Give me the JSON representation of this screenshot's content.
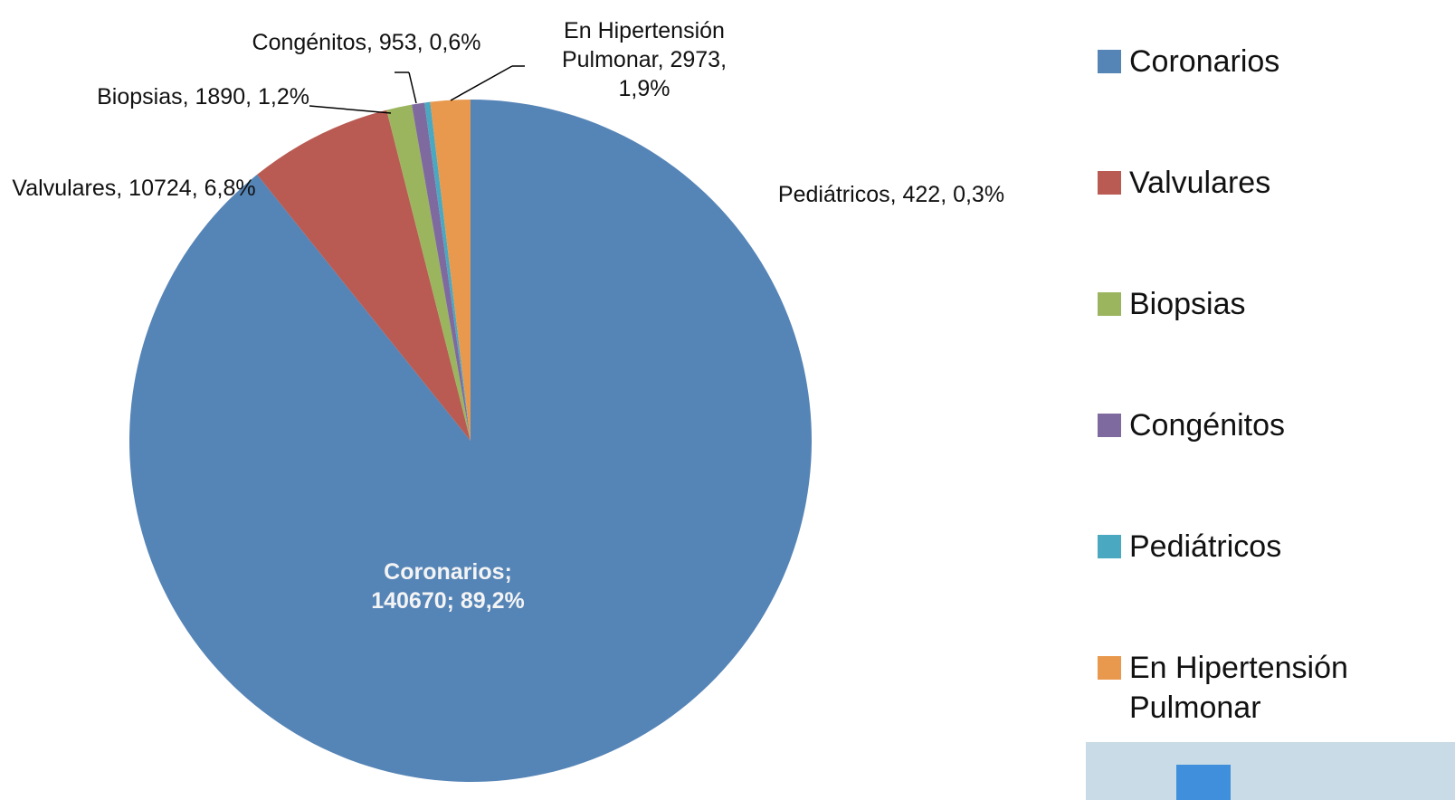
{
  "chart_data": {
    "type": "pie",
    "categories": [
      "Coronarios",
      "Valvulares",
      "Biopsias",
      "Congénitos",
      "Pediátricos",
      "En Hipertensión Pulmonar"
    ],
    "values": [
      140670,
      10724,
      1890,
      953,
      422,
      2973
    ],
    "value_labels": [
      "Coronarios; 140670; 89,2%",
      "Valvulares, 10724, 6,8%",
      "Biopsias, 1890, 1,2%",
      "Congénitos, 953, 0,6%",
      "Pediátricos, 422, 0,3%",
      "En Hipertensión Pulmonar, 2973, 1,9%"
    ],
    "colors": [
      "#5584b6",
      "#b95b53",
      "#9bb55f",
      "#7f6aa0",
      "#4aa8c0",
      "#e8994d"
    ],
    "legend": "right"
  }
}
